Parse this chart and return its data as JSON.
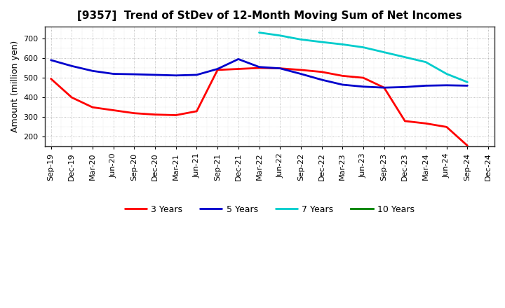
{
  "title": "[9357]  Trend of StDev of 12-Month Moving Sum of Net Incomes",
  "ylabel": "Amount (million yen)",
  "xlim_labels": [
    "Sep-19",
    "Dec-19",
    "Mar-20",
    "Jun-20",
    "Sep-20",
    "Dec-20",
    "Mar-21",
    "Jun-21",
    "Sep-21",
    "Dec-21",
    "Mar-22",
    "Jun-22",
    "Sep-22",
    "Dec-22",
    "Mar-23",
    "Jun-23",
    "Sep-23",
    "Dec-23",
    "Mar-24",
    "Jun-24",
    "Sep-24",
    "Dec-24"
  ],
  "ylim": [
    150,
    760
  ],
  "yticks": [
    200,
    300,
    400,
    500,
    600,
    700
  ],
  "series": {
    "3 Years": {
      "color": "#ff0000",
      "values": [
        495,
        400,
        350,
        335,
        320,
        313,
        310,
        330,
        540,
        545,
        550,
        548,
        540,
        530,
        510,
        500,
        450,
        280,
        268,
        250,
        155,
        null
      ]
    },
    "5 Years": {
      "color": "#0000cc",
      "values": [
        590,
        560,
        535,
        520,
        518,
        515,
        512,
        515,
        545,
        595,
        555,
        548,
        520,
        490,
        465,
        455,
        450,
        453,
        460,
        462,
        460,
        null
      ]
    },
    "7 Years": {
      "color": "#00cccc",
      "values": [
        null,
        null,
        null,
        null,
        null,
        null,
        null,
        null,
        null,
        null,
        730,
        715,
        695,
        682,
        670,
        655,
        630,
        605,
        580,
        520,
        478,
        null
      ]
    },
    "10 Years": {
      "color": "#008000",
      "values": [
        null,
        null,
        null,
        null,
        null,
        null,
        null,
        null,
        null,
        null,
        null,
        null,
        null,
        null,
        null,
        null,
        null,
        null,
        null,
        null,
        null,
        null
      ]
    }
  },
  "legend_order": [
    "3 Years",
    "5 Years",
    "7 Years",
    "10 Years"
  ],
  "background_color": "#ffffff",
  "plot_bg_color": "#ffffff",
  "grid_color": "#aaaaaa",
  "linewidth": 2.0,
  "title_fontsize": 11,
  "axis_fontsize": 8,
  "ylabel_fontsize": 9
}
